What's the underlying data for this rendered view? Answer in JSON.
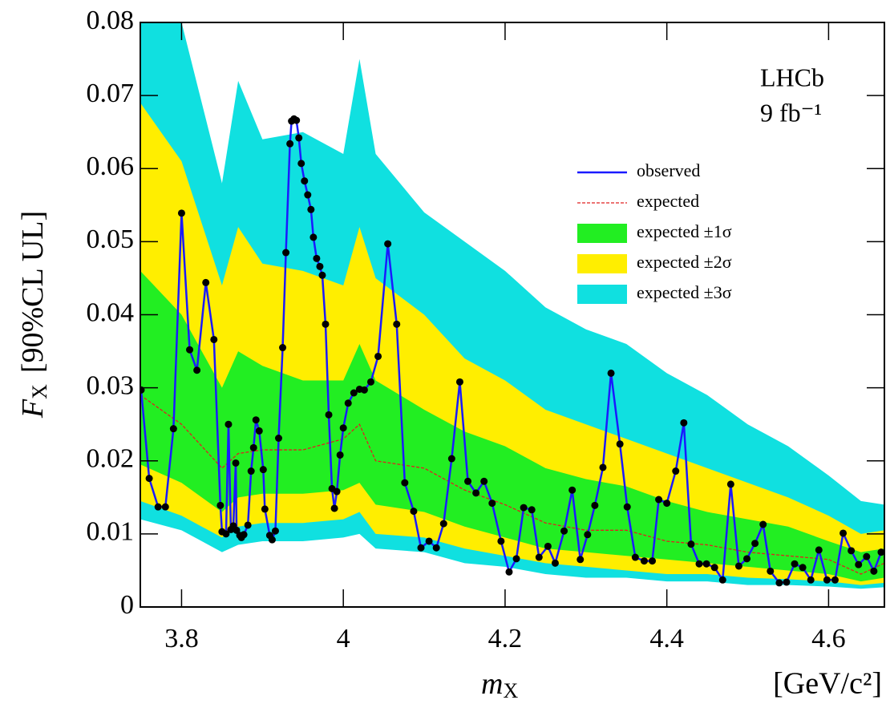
{
  "chart_data": {
    "type": "line",
    "annotations": [
      "LHCb",
      "9 fb⁻¹"
    ],
    "x_label": {
      "main": "m",
      "sub": "X"
    },
    "x_unit": "[GeV/c²]",
    "y_label": {
      "main": "F",
      "sub": "X",
      "rest": "[90%CL UL]"
    },
    "xlim": [
      3.749,
      4.669
    ],
    "ylim": [
      0,
      0.08
    ],
    "xticks": [
      3.8,
      4,
      4.2,
      4.4,
      4.6
    ],
    "yticks": [
      0,
      0.01,
      0.02,
      0.03,
      0.04,
      0.05,
      0.06,
      0.07,
      0.08
    ],
    "legend": "upper right",
    "series": [
      {
        "name": "observed",
        "color": "#1a1aff",
        "marker_color": "#000000",
        "x": [
          3.75,
          3.76,
          3.771,
          3.78,
          3.79,
          3.8,
          3.81,
          3.819,
          3.83,
          3.84,
          3.848,
          3.85,
          3.855,
          3.858,
          3.861,
          3.864,
          3.867,
          3.868,
          3.872,
          3.874,
          3.877,
          3.882,
          3.886,
          3.889,
          3.892,
          3.896,
          3.901,
          3.903,
          3.909,
          3.912,
          3.916,
          3.92,
          3.925,
          3.929,
          3.934,
          3.936,
          3.939,
          3.942,
          3.945,
          3.948,
          3.952,
          3.956,
          3.96,
          3.963,
          3.967,
          3.971,
          3.974,
          3.978,
          3.982,
          3.986,
          3.989,
          3.992,
          3.996,
          4.0,
          4.006,
          4.013,
          4.02,
          4.026,
          4.034,
          4.043,
          4.055,
          4.066,
          4.076,
          4.087,
          4.096,
          4.106,
          4.115,
          4.124,
          4.134,
          4.144,
          4.154,
          4.164,
          4.174,
          4.184,
          4.195,
          4.205,
          4.214,
          4.223,
          4.233,
          4.242,
          4.253,
          4.262,
          4.273,
          4.283,
          4.293,
          4.302,
          4.311,
          4.321,
          4.331,
          4.342,
          4.351,
          4.361,
          4.372,
          4.382,
          4.39,
          4.4,
          4.411,
          4.421,
          4.43,
          4.44,
          4.449,
          4.459,
          4.469,
          4.479,
          4.489,
          4.499,
          4.509,
          4.519,
          4.528,
          4.539,
          4.548,
          4.558,
          4.568,
          4.578,
          4.588,
          4.598,
          4.608,
          4.618,
          4.628,
          4.637,
          4.647,
          4.656,
          4.665
        ],
        "values": [
          0.0297,
          0.0176,
          0.0137,
          0.0137,
          0.0244,
          0.0539,
          0.0352,
          0.0324,
          0.0444,
          0.0366,
          0.0139,
          0.0103,
          0.01,
          0.025,
          0.0106,
          0.0111,
          0.0197,
          0.0105,
          0.0098,
          0.0095,
          0.0099,
          0.0112,
          0.0186,
          0.0218,
          0.0256,
          0.0241,
          0.0188,
          0.0134,
          0.0098,
          0.0092,
          0.0104,
          0.0231,
          0.0355,
          0.0485,
          0.0634,
          0.0665,
          0.0668,
          0.0666,
          0.0642,
          0.0607,
          0.0583,
          0.0564,
          0.0544,
          0.0506,
          0.0477,
          0.0466,
          0.0454,
          0.0387,
          0.0263,
          0.0162,
          0.0135,
          0.0158,
          0.0208,
          0.0245,
          0.0279,
          0.0293,
          0.0298,
          0.0297,
          0.0308,
          0.0343,
          0.0497,
          0.0387,
          0.017,
          0.0131,
          0.0081,
          0.009,
          0.0081,
          0.0114,
          0.0203,
          0.0308,
          0.0172,
          0.0156,
          0.0172,
          0.0142,
          0.009,
          0.0048,
          0.0066,
          0.0136,
          0.0133,
          0.0068,
          0.0083,
          0.006,
          0.0104,
          0.016,
          0.0065,
          0.0099,
          0.0139,
          0.0191,
          0.032,
          0.0223,
          0.0137,
          0.0068,
          0.0063,
          0.0063,
          0.0147,
          0.0142,
          0.0186,
          0.0252,
          0.0086,
          0.0059,
          0.0059,
          0.0054,
          0.0037,
          0.0168,
          0.0056,
          0.0066,
          0.0087,
          0.0113,
          0.0049,
          0.0033,
          0.0034,
          0.0059,
          0.0054,
          0.0037,
          0.0078,
          0.0037,
          0.0037,
          0.0101,
          0.0077,
          0.0058,
          0.0069,
          0.0049,
          0.0075
        ]
      },
      {
        "name": "expected",
        "color": "#e02020",
        "dashed": true,
        "x": [
          3.749,
          3.8,
          3.85,
          3.87,
          3.9,
          3.95,
          4.0,
          4.02,
          4.04,
          4.1,
          4.15,
          4.2,
          4.25,
          4.3,
          4.35,
          4.4,
          4.45,
          4.5,
          4.55,
          4.6,
          4.64,
          4.669
        ],
        "values": [
          0.029,
          0.025,
          0.019,
          0.021,
          0.0215,
          0.0215,
          0.023,
          0.025,
          0.02,
          0.019,
          0.016,
          0.014,
          0.0115,
          0.0105,
          0.0105,
          0.009,
          0.0085,
          0.0075,
          0.007,
          0.0065,
          0.0045,
          0.006
        ]
      }
    ],
    "bands": [
      {
        "name": "expected ±1σ",
        "color": "#22ee22",
        "x": [
          3.749,
          3.8,
          3.85,
          3.87,
          3.9,
          3.95,
          4.0,
          4.02,
          4.04,
          4.1,
          4.15,
          4.2,
          4.25,
          4.3,
          4.35,
          4.4,
          4.45,
          4.5,
          4.55,
          4.6,
          4.64,
          4.669
        ],
        "lower": [
          0.0195,
          0.017,
          0.013,
          0.015,
          0.0155,
          0.0155,
          0.016,
          0.017,
          0.014,
          0.013,
          0.011,
          0.0095,
          0.008,
          0.0075,
          0.007,
          0.0065,
          0.006,
          0.0055,
          0.005,
          0.0045,
          0.0035,
          0.004
        ],
        "upper": [
          0.046,
          0.04,
          0.03,
          0.035,
          0.033,
          0.031,
          0.031,
          0.036,
          0.031,
          0.027,
          0.024,
          0.022,
          0.019,
          0.0175,
          0.0165,
          0.0145,
          0.013,
          0.012,
          0.011,
          0.009,
          0.0075,
          0.008
        ]
      },
      {
        "name": "expected ±2σ",
        "color": "#ffee00",
        "x": [
          3.749,
          3.8,
          3.85,
          3.87,
          3.9,
          3.95,
          4.0,
          4.02,
          4.04,
          4.1,
          4.15,
          4.2,
          4.25,
          4.3,
          4.35,
          4.4,
          4.45,
          4.5,
          4.55,
          4.6,
          4.64,
          4.669
        ],
        "lower": [
          0.0145,
          0.0125,
          0.0095,
          0.011,
          0.0115,
          0.0115,
          0.012,
          0.013,
          0.01,
          0.0095,
          0.008,
          0.007,
          0.006,
          0.0055,
          0.005,
          0.0045,
          0.0045,
          0.004,
          0.0038,
          0.0035,
          0.003,
          0.0033
        ],
        "upper": [
          0.069,
          0.061,
          0.044,
          0.052,
          0.047,
          0.046,
          0.044,
          0.052,
          0.045,
          0.04,
          0.034,
          0.031,
          0.027,
          0.025,
          0.023,
          0.021,
          0.019,
          0.017,
          0.015,
          0.0125,
          0.01,
          0.0105
        ]
      },
      {
        "name": "expected ±3σ",
        "color": "#10e0e0",
        "x": [
          3.749,
          3.8,
          3.85,
          3.87,
          3.9,
          3.95,
          4.0,
          4.02,
          4.04,
          4.1,
          4.15,
          4.2,
          4.25,
          4.3,
          4.35,
          4.4,
          4.45,
          4.5,
          4.55,
          4.6,
          4.64,
          4.669
        ],
        "lower": [
          0.012,
          0.0105,
          0.0075,
          0.0085,
          0.009,
          0.009,
          0.0095,
          0.01,
          0.008,
          0.0075,
          0.006,
          0.0055,
          0.0045,
          0.004,
          0.004,
          0.0035,
          0.0035,
          0.003,
          0.003,
          0.0028,
          0.0025,
          0.0027
        ],
        "upper": [
          0.08,
          0.08,
          0.058,
          0.072,
          0.064,
          0.065,
          0.062,
          0.075,
          0.062,
          0.054,
          0.05,
          0.046,
          0.041,
          0.038,
          0.036,
          0.032,
          0.029,
          0.025,
          0.022,
          0.018,
          0.0145,
          0.014
        ]
      }
    ]
  }
}
